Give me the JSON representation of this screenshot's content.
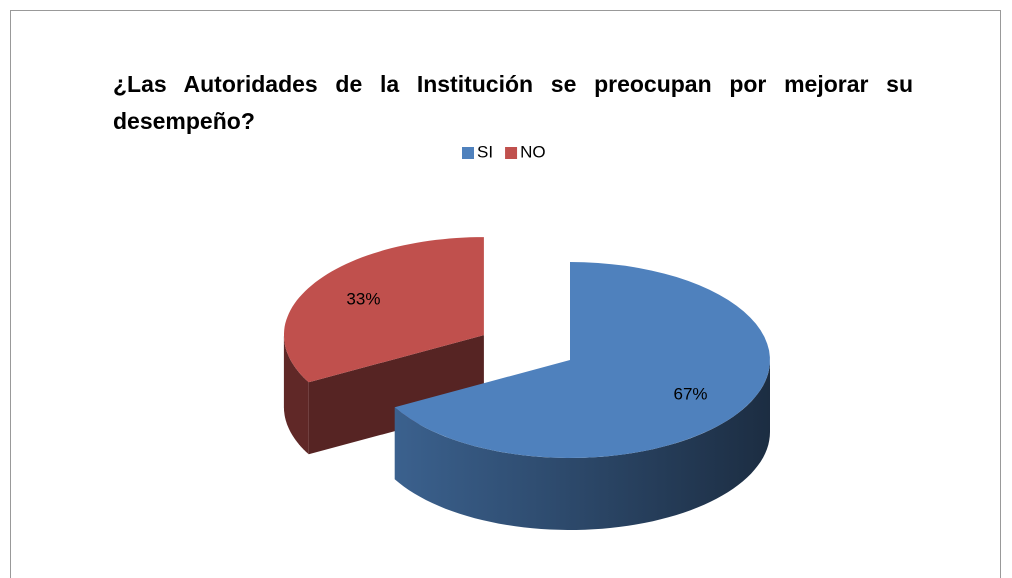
{
  "chart_data": {
    "type": "pie",
    "title": "¿Las Autoridades de la Institución se preocupan por mejorar su desempeño?",
    "categories": [
      "SI",
      "NO"
    ],
    "values": [
      67,
      33
    ],
    "value_labels": [
      "67%",
      "33%"
    ],
    "colors": [
      "#4f81bd",
      "#c0504d"
    ],
    "legend": "top"
  }
}
